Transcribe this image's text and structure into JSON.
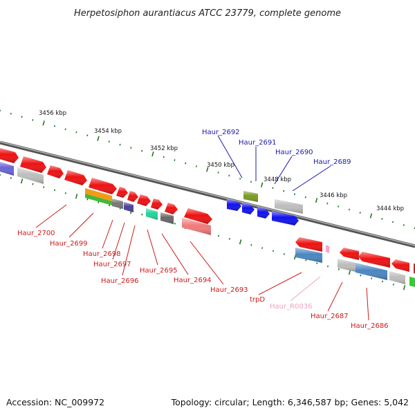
{
  "title": "Herpetosiphon aurantiacus ATCC 23779, complete genome",
  "footer": {
    "accession": "Accession: NC_009972",
    "topology": "Topology: circular; Length: 6,346,587 bp; Genes: 5,042"
  },
  "ticks": [
    "3456 kbp",
    "3454 kbp",
    "3452 kbp",
    "3450 kbp",
    "3448 kbp",
    "3446 kbp",
    "3444 kbp"
  ],
  "colors": {
    "backbone": "#7a7a7a",
    "tick_mark": "#1f7a1f",
    "forward_label": "#1a1aaa",
    "reverse_label": "#cc1a1a",
    "rna_label": "#f2a0c0"
  },
  "forward_labels": [
    "Haur_2692",
    "Haur_2691",
    "Haur_2690",
    "Haur_2689"
  ],
  "reverse_labels": [
    "Haur_2700",
    "Haur_2699",
    "Haur_2698",
    "Haur_2697",
    "Haur_2696",
    "Haur_2695",
    "Haur_2694",
    "Haur_2693",
    "trpD",
    "Haur_R0036",
    "Haur_2687",
    "Haur_2686"
  ]
}
